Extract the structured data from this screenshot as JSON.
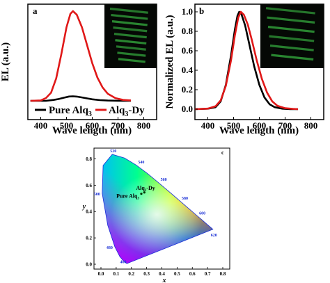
{
  "colors": {
    "pure": "#000000",
    "doped": "#e01818",
    "axis": "#000000",
    "wl_label": "#1a2fd6"
  },
  "panels": {
    "a": {
      "label": "a"
    },
    "b": {
      "label": "b"
    },
    "c": {
      "label": "c"
    }
  },
  "chart_data": [
    {
      "panel": "a",
      "type": "line",
      "xlabel": "Wave length (nm)",
      "ylabel": "EL (a.u.)",
      "xlim": [
        350,
        850
      ],
      "xticks": [
        "400",
        "500",
        "600",
        "700",
        "800"
      ],
      "legend_position": "bottom",
      "inset": "green-emission-photo",
      "series": [
        {
          "name_main": "Pure Alq",
          "name_sub": "3",
          "name_tail": "",
          "color": "#000000",
          "x": [
            360,
            420,
            450,
            470,
            490,
            510,
            525,
            540,
            560,
            580,
            600,
            630,
            660,
            700,
            750
          ],
          "y": [
            0,
            0,
            0.01,
            0.02,
            0.035,
            0.048,
            0.05,
            0.047,
            0.038,
            0.027,
            0.017,
            0.008,
            0.003,
            0.001,
            0
          ]
        },
        {
          "name_main": "Alq",
          "name_sub": "3",
          "name_tail": "-Dy",
          "color": "#e01818",
          "x": [
            360,
            400,
            420,
            440,
            460,
            480,
            500,
            515,
            525,
            540,
            560,
            580,
            600,
            620,
            640,
            660,
            690,
            720,
            750
          ],
          "y": [
            0,
            0.005,
            0.03,
            0.09,
            0.25,
            0.52,
            0.82,
            0.97,
            1.0,
            0.96,
            0.82,
            0.62,
            0.42,
            0.26,
            0.15,
            0.08,
            0.03,
            0.01,
            0.005
          ]
        }
      ]
    },
    {
      "panel": "b",
      "type": "line",
      "xlabel": "Wave length (nm)",
      "ylabel": "Normalized EL (a.u.)",
      "xlim": [
        350,
        850
      ],
      "ylim": [
        -0.1,
        1.1
      ],
      "xticks": [
        "400",
        "500",
        "600",
        "700",
        "800"
      ],
      "yticks": [
        "0.0",
        "0.2",
        "0.4",
        "0.6",
        "0.8",
        "1.0"
      ],
      "inset": "green-emission-photo",
      "series": [
        {
          "color": "#000000",
          "x": [
            350,
            400,
            430,
            450,
            470,
            490,
            505,
            515,
            522,
            530,
            545,
            560,
            580,
            600,
            620,
            640,
            660,
            690,
            720,
            750
          ],
          "y": [
            0,
            0.005,
            0.02,
            0.08,
            0.25,
            0.55,
            0.82,
            0.96,
            1.0,
            0.98,
            0.86,
            0.68,
            0.44,
            0.25,
            0.12,
            0.05,
            0.02,
            0.005,
            0,
            0
          ]
        },
        {
          "color": "#e01818",
          "x": [
            350,
            400,
            430,
            450,
            470,
            490,
            505,
            518,
            528,
            540,
            555,
            570,
            590,
            610,
            630,
            650,
            670,
            700,
            730,
            750
          ],
          "y": [
            0,
            0.006,
            0.03,
            0.09,
            0.24,
            0.5,
            0.76,
            0.94,
            1.0,
            0.97,
            0.87,
            0.72,
            0.5,
            0.31,
            0.17,
            0.08,
            0.035,
            0.01,
            0.003,
            0
          ]
        }
      ]
    },
    {
      "panel": "c",
      "type": "scatter",
      "xlabel": "x",
      "ylabel": "y",
      "xlim": [
        0,
        0.8
      ],
      "ylim": [
        0,
        0.85
      ],
      "xticks": [
        "0.0",
        "0.1",
        "0.2",
        "0.3",
        "0.4",
        "0.5",
        "0.6",
        "0.7",
        "0.8"
      ],
      "yticks": [
        "0.0",
        "0.2",
        "0.4",
        "0.6",
        "0.8"
      ],
      "wavelength_labels": [
        "460",
        "480",
        "500",
        "520",
        "540",
        "560",
        "580",
        "600",
        "620"
      ],
      "points": [
        {
          "name_main": "Pure Alq",
          "name_sub": "3",
          "name_tail": "",
          "x": 0.265,
          "y": 0.535
        },
        {
          "name_main": "Alq",
          "name_sub": "3",
          "name_tail": "-Dy",
          "x": 0.285,
          "y": 0.545
        }
      ]
    }
  ]
}
